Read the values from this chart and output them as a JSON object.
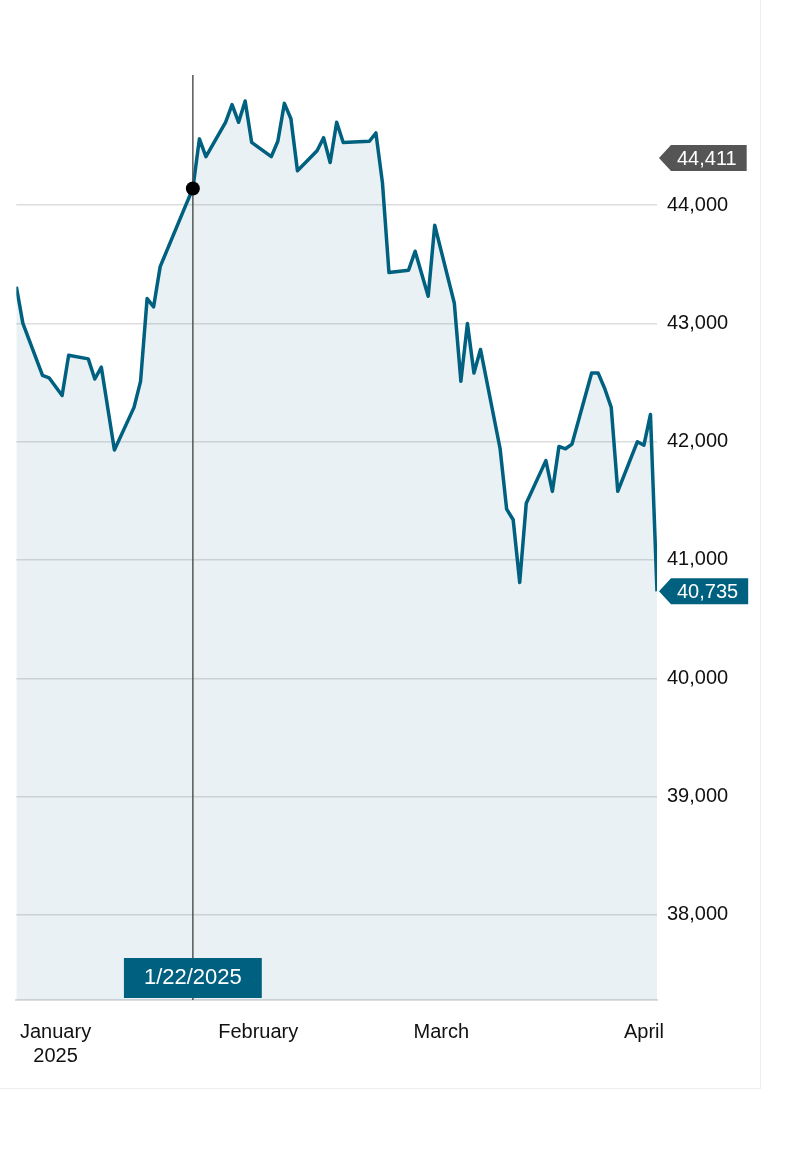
{
  "chart_data": {
    "type": "area",
    "x": [
      "2024-12-26",
      "2024-12-27",
      "2024-12-30",
      "2024-12-31",
      "2025-01-02",
      "2025-01-03",
      "2025-01-06",
      "2025-01-07",
      "2025-01-08",
      "2025-01-10",
      "2025-01-13",
      "2025-01-14",
      "2025-01-15",
      "2025-01-16",
      "2025-01-17",
      "2025-01-21",
      "2025-01-22",
      "2025-01-23",
      "2025-01-24",
      "2025-01-27",
      "2025-01-28",
      "2025-01-29",
      "2025-01-30",
      "2025-01-31",
      "2025-02-03",
      "2025-02-04",
      "2025-02-05",
      "2025-02-06",
      "2025-02-07",
      "2025-02-10",
      "2025-02-11",
      "2025-02-12",
      "2025-02-13",
      "2025-02-14",
      "2025-02-18",
      "2025-02-19",
      "2025-02-20",
      "2025-02-21",
      "2025-02-24",
      "2025-02-25",
      "2025-02-26",
      "2025-02-27",
      "2025-02-28",
      "2025-03-03",
      "2025-03-04",
      "2025-03-05",
      "2025-03-06",
      "2025-03-07",
      "2025-03-10",
      "2025-03-11",
      "2025-03-12",
      "2025-03-13",
      "2025-03-14",
      "2025-03-17",
      "2025-03-18",
      "2025-03-19",
      "2025-03-20",
      "2025-03-21",
      "2025-03-24",
      "2025-03-25",
      "2025-03-26",
      "2025-03-27",
      "2025-03-28",
      "2025-03-31",
      "2025-04-01",
      "2025-04-02",
      "2025-04-03"
    ],
    "series": [
      {
        "color": "#00607f",
        "values": [
          43310,
          43000,
          42560,
          42540,
          42390,
          42730,
          42700,
          42530,
          42630,
          41930,
          42290,
          42510,
          43210,
          43140,
          43480,
          44010,
          44140,
          44560,
          44410,
          44700,
          44850,
          44700,
          44880,
          44530,
          44410,
          44540,
          44860,
          44730,
          44290,
          44460,
          44570,
          44360,
          44700,
          44530,
          44540,
          44610,
          44190,
          43430,
          43450,
          43610,
          43420,
          43230,
          43830,
          43170,
          42510,
          43000,
          42580,
          42780,
          41940,
          41430,
          41340,
          40810,
          41480,
          41840,
          41580,
          41960,
          41940,
          41980,
          42580,
          42580,
          42450,
          42290,
          41580,
          42000,
          41970,
          42230,
          40735
        ],
        "value_labels": [
          null,
          null,
          null,
          null,
          null,
          null,
          null,
          null,
          null,
          null,
          null,
          null,
          null,
          null,
          null,
          null,
          null,
          null,
          null,
          null,
          null,
          null,
          null,
          null,
          null,
          null,
          null,
          null,
          null,
          null,
          null,
          null,
          null,
          null,
          null,
          null,
          null,
          null,
          null,
          null,
          null,
          null,
          null,
          null,
          null,
          null,
          null,
          null,
          null,
          null,
          null,
          null,
          null,
          null,
          null,
          null,
          null,
          null,
          null,
          null,
          null,
          null,
          null,
          null,
          null,
          null,
          "40,735"
        ]
      }
    ],
    "xlim": [
      "2024-12-26",
      "2025-04-03"
    ],
    "xticks": [
      {
        "value": "2025-01-01",
        "label": "January 2025"
      },
      {
        "value": "2025-02-01",
        "label": "February"
      },
      {
        "value": "2025-03-01",
        "label": "March"
      },
      {
        "value": "2025-04-01",
        "label": "April"
      }
    ],
    "ylim": [
      37280,
      45100
    ],
    "yticks": [
      {
        "value": 38000,
        "label": "38,000"
      },
      {
        "value": 39000,
        "label": "39,000"
      },
      {
        "value": 40000,
        "label": "40,000"
      },
      {
        "value": 41000,
        "label": "41,000"
      },
      {
        "value": 42000,
        "label": "42,000"
      },
      {
        "value": 43000,
        "label": "43,000"
      },
      {
        "value": 44000,
        "label": "44,000"
      }
    ],
    "ref_lines": [
      {
        "axis": "x",
        "value": "2025-01-22",
        "label": "1/22/2025",
        "color": "#555555"
      }
    ],
    "annotations": [
      "44,411"
    ],
    "grid": "y",
    "legend": false,
    "marker": "none",
    "line_style": "solid"
  }
}
